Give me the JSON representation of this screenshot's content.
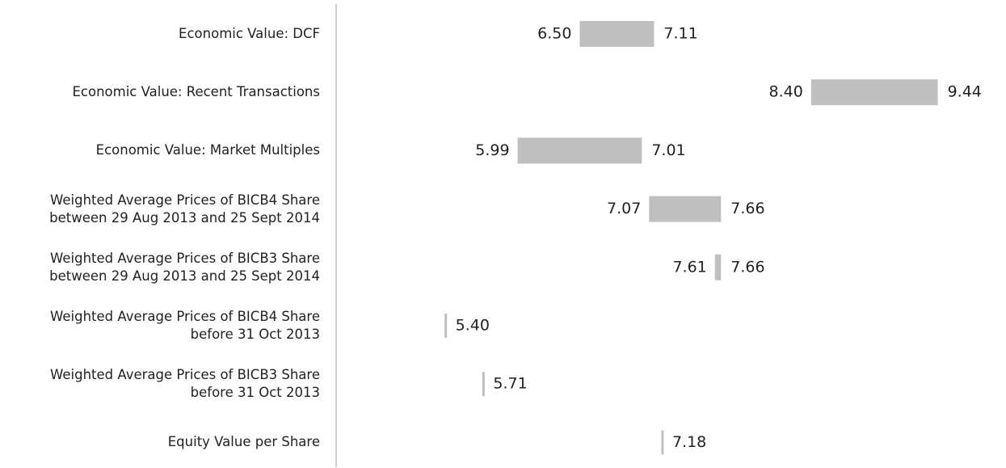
{
  "chart_data": {
    "type": "range_bar",
    "categories": [
      "Economic Value: DCF",
      "Economic Value: Recent Transactions",
      "Economic Value: Market Multiples",
      "Weighted Average Prices of BICB4 Share\nbetween 29 Aug 2013 and 25 Sept 2014",
      "Weighted Average Prices of BICB3 Share\nbetween 29 Aug 2013 and 25 Sept 2014",
      "Weighted Average Prices of BICB4 Share\nbefore 31 Oct 2013",
      "Weighted Average Prices of BICB3 Share\nbefore 31 Oct 2013",
      "Equity Value per Share"
    ],
    "low": {
      "values": [
        6.5,
        8.4,
        5.99,
        7.07,
        7.61,
        null,
        null,
        null
      ],
      "value_labels": [
        "6.50",
        "8.40",
        "5.99",
        "7.07",
        "7.61",
        null,
        null,
        null
      ]
    },
    "high": {
      "values": [
        7.11,
        9.44,
        7.01,
        7.66,
        7.66,
        5.4,
        5.71,
        7.18
      ],
      "value_labels": [
        "7.11",
        "9.44",
        "7.01",
        "7.66",
        "7.66",
        "5.40",
        "5.71",
        "7.18"
      ]
    },
    "xlim": [
      4.5,
      10
    ],
    "color": "#bfbfbf"
  }
}
